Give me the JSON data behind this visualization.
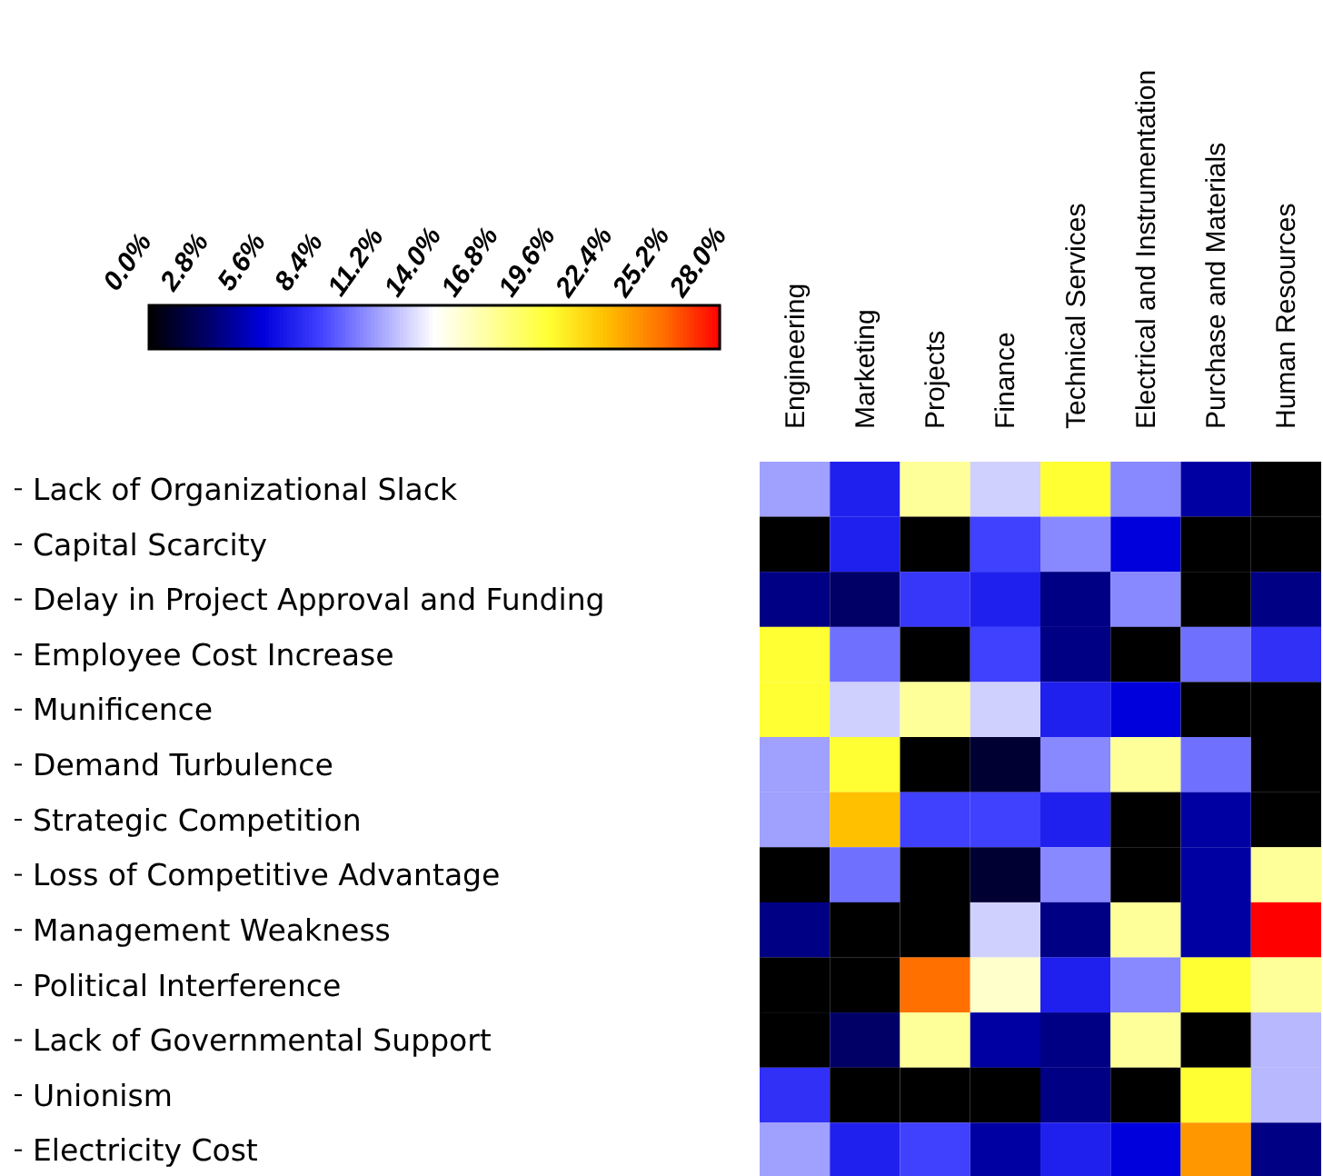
{
  "chart_data": {
    "type": "heatmap",
    "categories": [
      "Engineering",
      "Marketing",
      "Projects",
      "Finance",
      "Technical Services",
      "Electrical and Instrumentation",
      "Purchase and Materials",
      "Human Resources"
    ],
    "y_categories": [
      "Lack of Organizational Slack",
      "Capital Scarcity",
      "Delay in Project Approval and Funding",
      "Employee Cost Increase",
      "Munificence",
      "Demand Turbulence",
      "Strategic Competition",
      "Loss of Competitive Advantage",
      "Management Weakness",
      "Political Interference",
      "Lack of Governmental Support",
      "Unionism",
      "Electricity Cost"
    ],
    "cells": [
      [
        11.2,
        7,
        16.8,
        12.6,
        19.6,
        10.5,
        4.2,
        0
      ],
      [
        0,
        7,
        0,
        8.4,
        10.5,
        5.6,
        0,
        0
      ],
      [
        3.5,
        2.8,
        8,
        7,
        3.5,
        10.5,
        0,
        3.5
      ],
      [
        19.6,
        9.8,
        0,
        8.4,
        3.5,
        0,
        9.8,
        7.7
      ],
      [
        19.6,
        12.6,
        16.8,
        12.6,
        7,
        5.6,
        0,
        0
      ],
      [
        11.2,
        19.6,
        0,
        1.4,
        10.5,
        16.8,
        9.8,
        0
      ],
      [
        11.2,
        22.4,
        8.4,
        8.4,
        7,
        0,
        4.2,
        0
      ],
      [
        0,
        9.8,
        0,
        1.4,
        10.5,
        0,
        4.2,
        16.8
      ],
      [
        3.5,
        0,
        0,
        12.6,
        3.5,
        16.8,
        4.2,
        28
      ],
      [
        0,
        0,
        25.2,
        15.4,
        7,
        10.5,
        19.6,
        16.8
      ],
      [
        0,
        2.8,
        16.8,
        4.2,
        3.5,
        16.8,
        0,
        11.9
      ],
      [
        7.7,
        0,
        0,
        0,
        3.5,
        0,
        19.6,
        11.9
      ],
      [
        11.2,
        7,
        8.4,
        4.2,
        7,
        5.6,
        23.8,
        3.5
      ]
    ],
    "clim": [
      0,
      28
    ],
    "cticks": [
      {
        "value": 0,
        "label": "0.0%"
      },
      {
        "value": 2.8,
        "label": "2.8%"
      },
      {
        "value": 5.6,
        "label": "5.6%"
      },
      {
        "value": 8.4,
        "label": "8.4%"
      },
      {
        "value": 11.2,
        "label": "11.2%"
      },
      {
        "value": 14,
        "label": "14.0%"
      },
      {
        "value": 16.8,
        "label": "16.8%"
      },
      {
        "value": 19.6,
        "label": "19.6%"
      },
      {
        "value": 22.4,
        "label": "22.4%"
      },
      {
        "value": 25.2,
        "label": "25.2%"
      },
      {
        "value": 28,
        "label": "28.0%"
      }
    ]
  }
}
